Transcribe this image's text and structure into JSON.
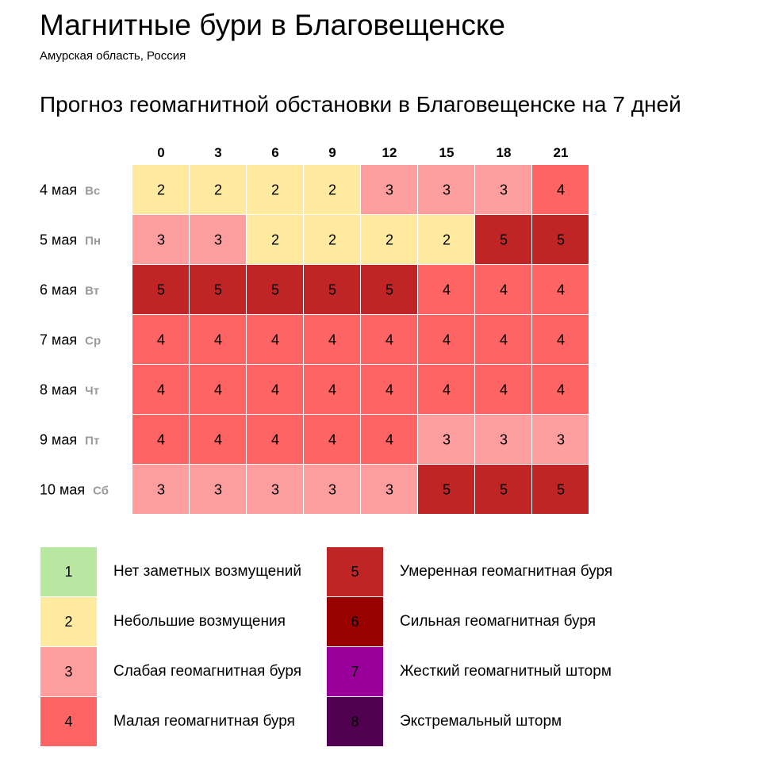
{
  "header": {
    "title": "Магнитные бури в Благовещенске",
    "subtitle": "Амурская область, Россия",
    "forecast_title": "Прогноз геомагнитной обстановки в Благовещенске на 7 дней"
  },
  "level_colors": {
    "1": "#b9e8a2",
    "2": "#ffeaa0",
    "3": "#ff9e9e",
    "4": "#ff6464",
    "5": "#c02525",
    "6": "#990000",
    "7": "#990099",
    "8": "#520052"
  },
  "chart_data": {
    "type": "heatmap",
    "x": [
      "0",
      "3",
      "6",
      "9",
      "12",
      "15",
      "18",
      "21"
    ],
    "rows": [
      {
        "date": "4 мая",
        "weekday": "Вс",
        "values": [
          2,
          2,
          2,
          2,
          3,
          3,
          3,
          4
        ]
      },
      {
        "date": "5 мая",
        "weekday": "Пн",
        "values": [
          3,
          3,
          2,
          2,
          2,
          2,
          5,
          5
        ]
      },
      {
        "date": "6 мая",
        "weekday": "Вт",
        "values": [
          5,
          5,
          5,
          5,
          5,
          4,
          4,
          4
        ]
      },
      {
        "date": "7 мая",
        "weekday": "Ср",
        "values": [
          4,
          4,
          4,
          4,
          4,
          4,
          4,
          4
        ]
      },
      {
        "date": "8 мая",
        "weekday": "Чт",
        "values": [
          4,
          4,
          4,
          4,
          4,
          4,
          4,
          4
        ]
      },
      {
        "date": "9 мая",
        "weekday": "Пт",
        "values": [
          4,
          4,
          4,
          4,
          4,
          3,
          3,
          3
        ]
      },
      {
        "date": "10 мая",
        "weekday": "Сб",
        "values": [
          3,
          3,
          3,
          3,
          3,
          5,
          5,
          5
        ]
      }
    ]
  },
  "legend": [
    {
      "level": "1",
      "label": "Нет заметных возмущений"
    },
    {
      "level": "2",
      "label": "Небольшие возмущения"
    },
    {
      "level": "3",
      "label": "Слабая геомагнитная буря"
    },
    {
      "level": "4",
      "label": "Малая геомагнитная буря"
    },
    {
      "level": "5",
      "label": "Умеренная геомагнитная буря"
    },
    {
      "level": "6",
      "label": "Сильная геомагнитная буря"
    },
    {
      "level": "7",
      "label": "Жесткий геомагнитный шторм"
    },
    {
      "level": "8",
      "label": "Экстремальный шторм"
    }
  ]
}
